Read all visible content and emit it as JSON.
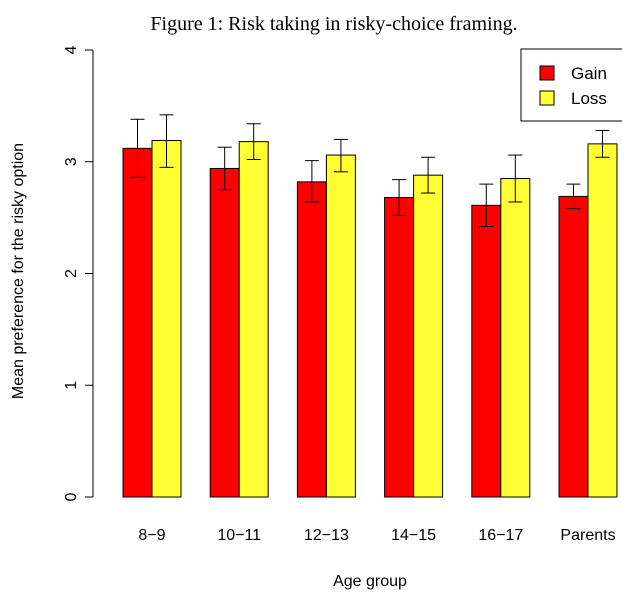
{
  "chart_data": {
    "type": "bar",
    "title": "Figure 1: Risk taking in risky-choice framing.",
    "xlabel": "Age group",
    "ylabel": "Mean preference for the risky option",
    "categories": [
      "8−9",
      "10−11",
      "12−13",
      "14−15",
      "16−17",
      "Parents"
    ],
    "ylim": [
      0,
      4
    ],
    "yticks": [
      "0",
      "1",
      "2",
      "3",
      "4"
    ],
    "legend_position": "top-right",
    "series": [
      {
        "name": "Gain",
        "color": "#ff0000",
        "values": [
          3.12,
          2.94,
          2.82,
          2.68,
          2.61,
          2.69
        ],
        "error_low": [
          2.86,
          2.75,
          2.64,
          2.52,
          2.42,
          2.58
        ],
        "error_high": [
          3.38,
          3.13,
          3.01,
          2.84,
          2.8,
          2.8
        ]
      },
      {
        "name": "Loss",
        "color": "#ffff33",
        "values": [
          3.19,
          3.18,
          3.06,
          2.88,
          2.85,
          3.16
        ],
        "error_low": [
          2.95,
          3.02,
          2.91,
          2.72,
          2.64,
          3.04
        ],
        "error_high": [
          3.42,
          3.34,
          3.2,
          3.04,
          3.06,
          3.28
        ]
      }
    ],
    "grid": false
  }
}
